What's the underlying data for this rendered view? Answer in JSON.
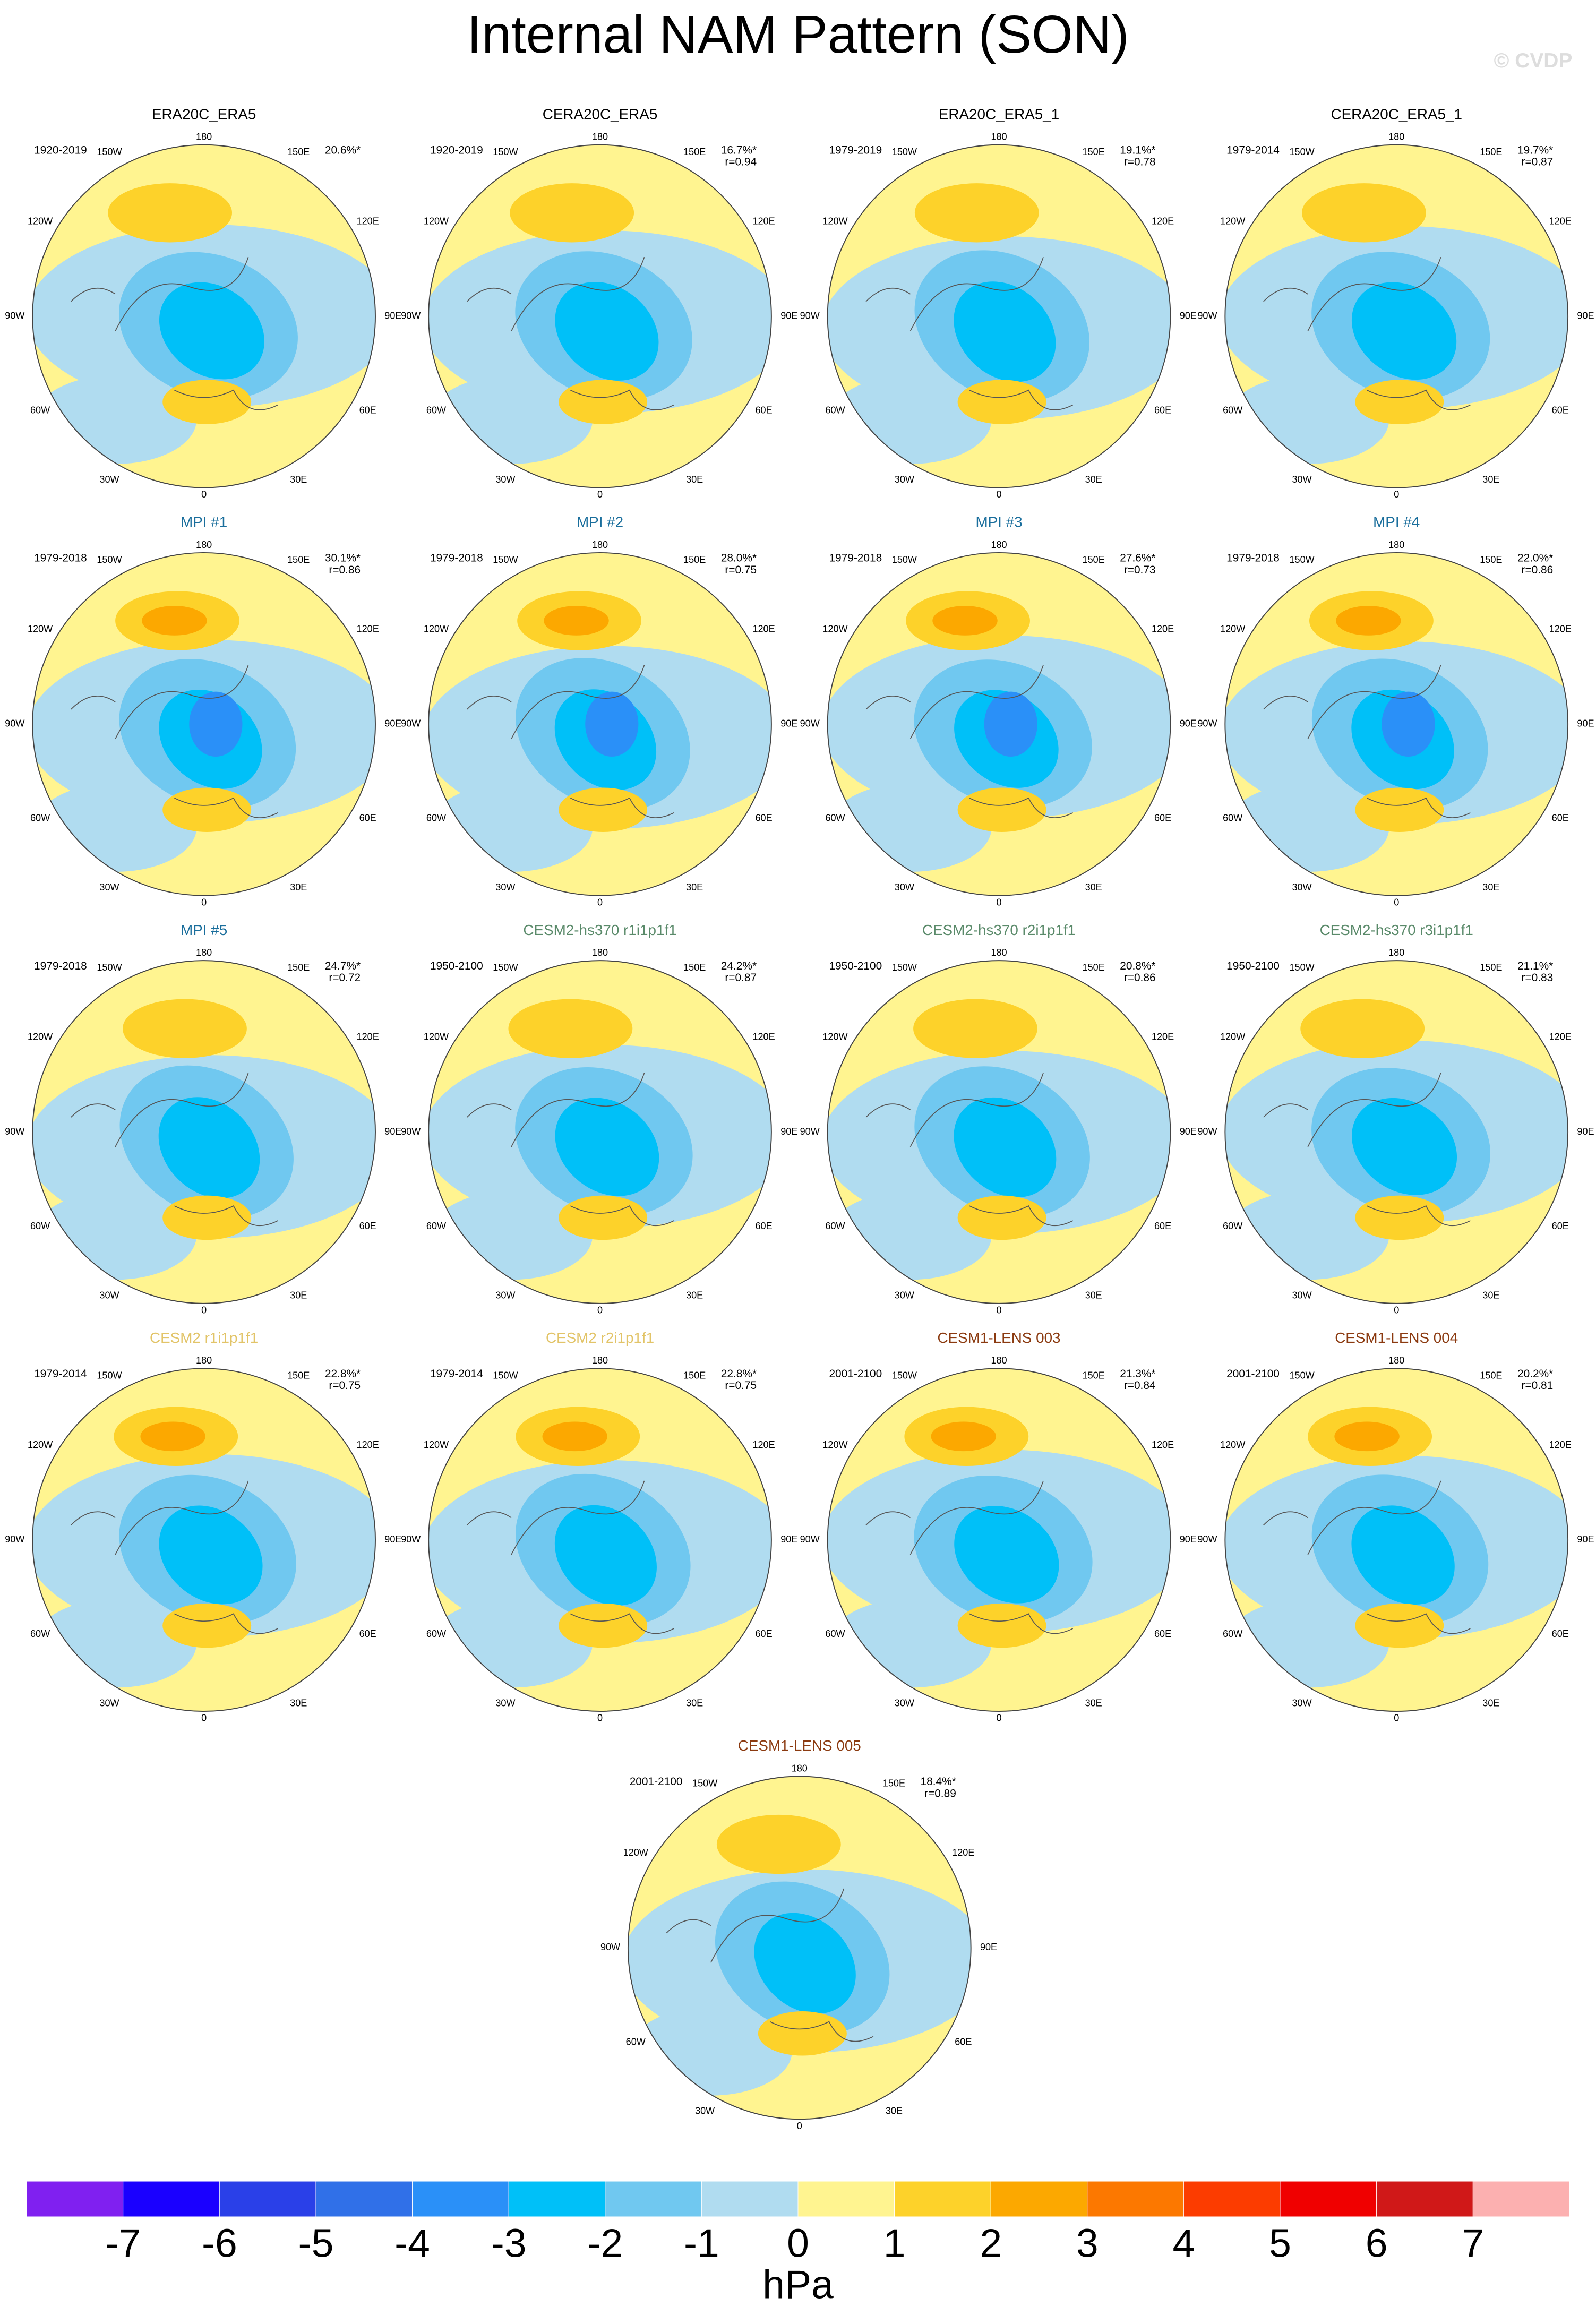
{
  "title": "Internal NAM Pattern (SON)",
  "watermark": "© CVDP",
  "lon_labels": {
    "l180": "180",
    "l150e": "150E",
    "l120e": "120E",
    "l90e": "90E",
    "l60e": "60E",
    "l30e": "30E",
    "l0": "0",
    "l30w": "30W",
    "l60w": "60W",
    "l90w": "90W",
    "l120w": "120W",
    "l150w": "150W"
  },
  "panels": [
    {
      "title": "ERA20C_ERA5",
      "title_color": "#000000",
      "period": "1920-2019",
      "pct": "20.6%*"
    },
    {
      "title": "CERA20C_ERA5",
      "title_color": "#000000",
      "period": "1920-2019",
      "pct": "16.7%*",
      "r": "r=0.94"
    },
    {
      "title": "ERA20C_ERA5_1",
      "title_color": "#000000",
      "period": "1979-2019",
      "pct": "19.1%*",
      "r": "r=0.78"
    },
    {
      "title": "CERA20C_ERA5_1",
      "title_color": "#000000",
      "period": "1979-2014",
      "pct": "19.7%*",
      "r": "r=0.87"
    },
    {
      "title": "MPI #1",
      "title_color": "#1a6e9c",
      "period": "1979-2018",
      "pct": "30.1%*",
      "r": "r=0.86"
    },
    {
      "title": "MPI #2",
      "title_color": "#1a6e9c",
      "period": "1979-2018",
      "pct": "28.0%*",
      "r": "r=0.75"
    },
    {
      "title": "MPI #3",
      "title_color": "#1a6e9c",
      "period": "1979-2018",
      "pct": "27.6%*",
      "r": "r=0.73"
    },
    {
      "title": "MPI #4",
      "title_color": "#1a6e9c",
      "period": "1979-2018",
      "pct": "22.0%*",
      "r": "r=0.86"
    },
    {
      "title": "MPI #5",
      "title_color": "#1a6e9c",
      "period": "1979-2018",
      "pct": "24.7%*",
      "r": "r=0.72"
    },
    {
      "title": "CESM2-hs370 r1i1p1f1",
      "title_color": "#5a8a6a",
      "period": "1950-2100",
      "pct": "24.2%*",
      "r": "r=0.87"
    },
    {
      "title": "CESM2-hs370 r2i1p1f1",
      "title_color": "#5a8a6a",
      "period": "1950-2100",
      "pct": "20.8%*",
      "r": "r=0.86"
    },
    {
      "title": "CESM2-hs370 r3i1p1f1",
      "title_color": "#5a8a6a",
      "period": "1950-2100",
      "pct": "21.1%*",
      "r": "r=0.83"
    },
    {
      "title": "CESM2 r1i1p1f1",
      "title_color": "#e2c468",
      "period": "1979-2014",
      "pct": "22.8%*",
      "r": "r=0.75"
    },
    {
      "title": "CESM2 r2i1p1f1",
      "title_color": "#e2c468",
      "period": "1979-2014",
      "pct": "22.8%*",
      "r": "r=0.75"
    },
    {
      "title": "CESM1-LENS 003",
      "title_color": "#8b3a10",
      "period": "2001-2100",
      "pct": "21.3%*",
      "r": "r=0.84"
    },
    {
      "title": "CESM1-LENS 004",
      "title_color": "#8b3a10",
      "period": "2001-2100",
      "pct": "20.2%*",
      "r": "r=0.81"
    },
    {
      "title": "CESM1-LENS 005",
      "title_color": "#8b3a10",
      "period": "2001-2100",
      "pct": "18.4%*",
      "r": "r=0.89"
    }
  ],
  "colorbar": {
    "ticks": [
      -7,
      -6,
      -5,
      -4,
      -3,
      -2,
      -1,
      0,
      1,
      2,
      3,
      4,
      5,
      6,
      7
    ],
    "unit": "hPa",
    "colors": [
      "#8020f0",
      "#1a00ff",
      "#2a40e8",
      "#3070e8",
      "#2a90f8",
      "#00c0f8",
      "#70c8f0",
      "#b0dcf0",
      "#fff490",
      "#fdd22a",
      "#fca800",
      "#fc7800",
      "#fc3c00",
      "#f00000",
      "#d01818",
      "#fcb0b0"
    ]
  }
}
